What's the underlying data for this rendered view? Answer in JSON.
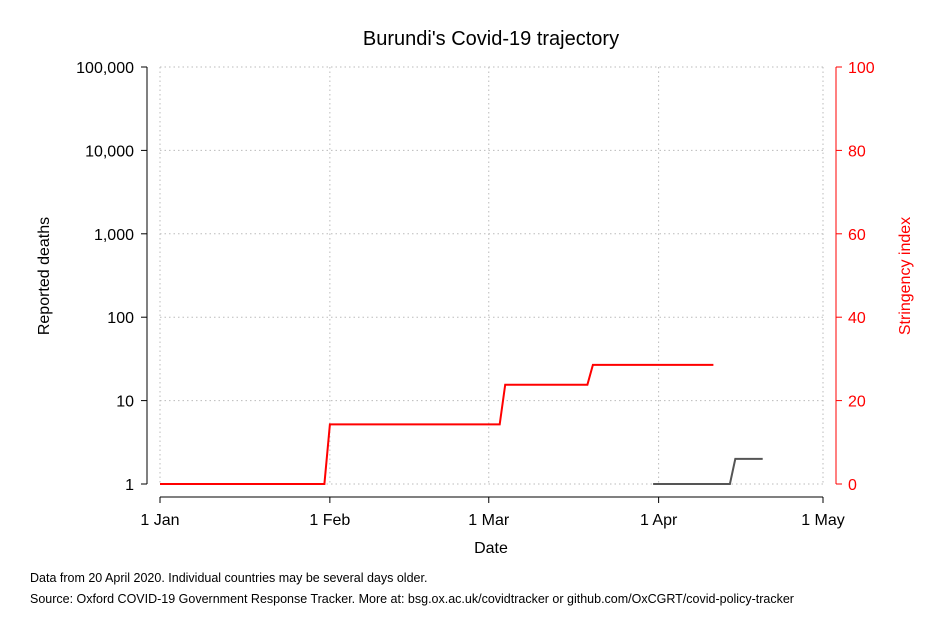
{
  "chart_data": {
    "type": "line",
    "title": "Burundi's Covid-19 trajectory",
    "xlabel": "Date",
    "ylabel_left": "Reported deaths",
    "ylabel_right": "Stringency index",
    "x_ticks": [
      "1 Jan",
      "1 Feb",
      "1 Mar",
      "1 Apr",
      "1 May"
    ],
    "xlim": [
      "2020-01-01",
      "2020-05-01"
    ],
    "y_left_scale": "log",
    "y_left_ticks": [
      1,
      10,
      100,
      1000,
      10000,
      100000
    ],
    "y_left_tick_labels": [
      "1",
      "10",
      "100",
      "1,000",
      "10,000",
      "100,000"
    ],
    "y_left_lim": [
      1,
      100000
    ],
    "y_right_ticks": [
      0,
      20,
      40,
      60,
      80,
      100
    ],
    "y_right_tick_labels": [
      "0",
      "20",
      "40",
      "60",
      "80",
      "100"
    ],
    "y_right_lim": [
      0,
      100
    ],
    "grid": true,
    "colors": {
      "deaths": "#555555",
      "stringency": "#ff0000",
      "right_axis": "#ff0000",
      "grid": "#bbbbbb"
    },
    "series": [
      {
        "axis": "left",
        "color": "#555555",
        "points": [
          {
            "x": "2020-03-31",
            "y": 1
          },
          {
            "x": "2020-04-14",
            "y": 1
          },
          {
            "x": "2020-04-15",
            "y": 2
          },
          {
            "x": "2020-04-20",
            "y": 2
          }
        ]
      },
      {
        "axis": "right",
        "color": "#ff0000",
        "points": [
          {
            "x": "2020-01-01",
            "y": 0
          },
          {
            "x": "2020-01-31",
            "y": 0
          },
          {
            "x": "2020-02-01",
            "y": 14.29
          },
          {
            "x": "2020-03-03",
            "y": 14.29
          },
          {
            "x": "2020-03-04",
            "y": 23.81
          },
          {
            "x": "2020-03-19",
            "y": 23.81
          },
          {
            "x": "2020-03-20",
            "y": 28.57
          },
          {
            "x": "2020-04-11",
            "y": 28.57
          }
        ]
      }
    ]
  },
  "notes": [
    "Data from 20 April 2020. Individual countries may be several days older.",
    "Source: Oxford COVID-19 Government Response Tracker. More at: bsg.ox.ac.uk/covidtracker or github.com/OxCGRT/covid-policy-tracker"
  ]
}
